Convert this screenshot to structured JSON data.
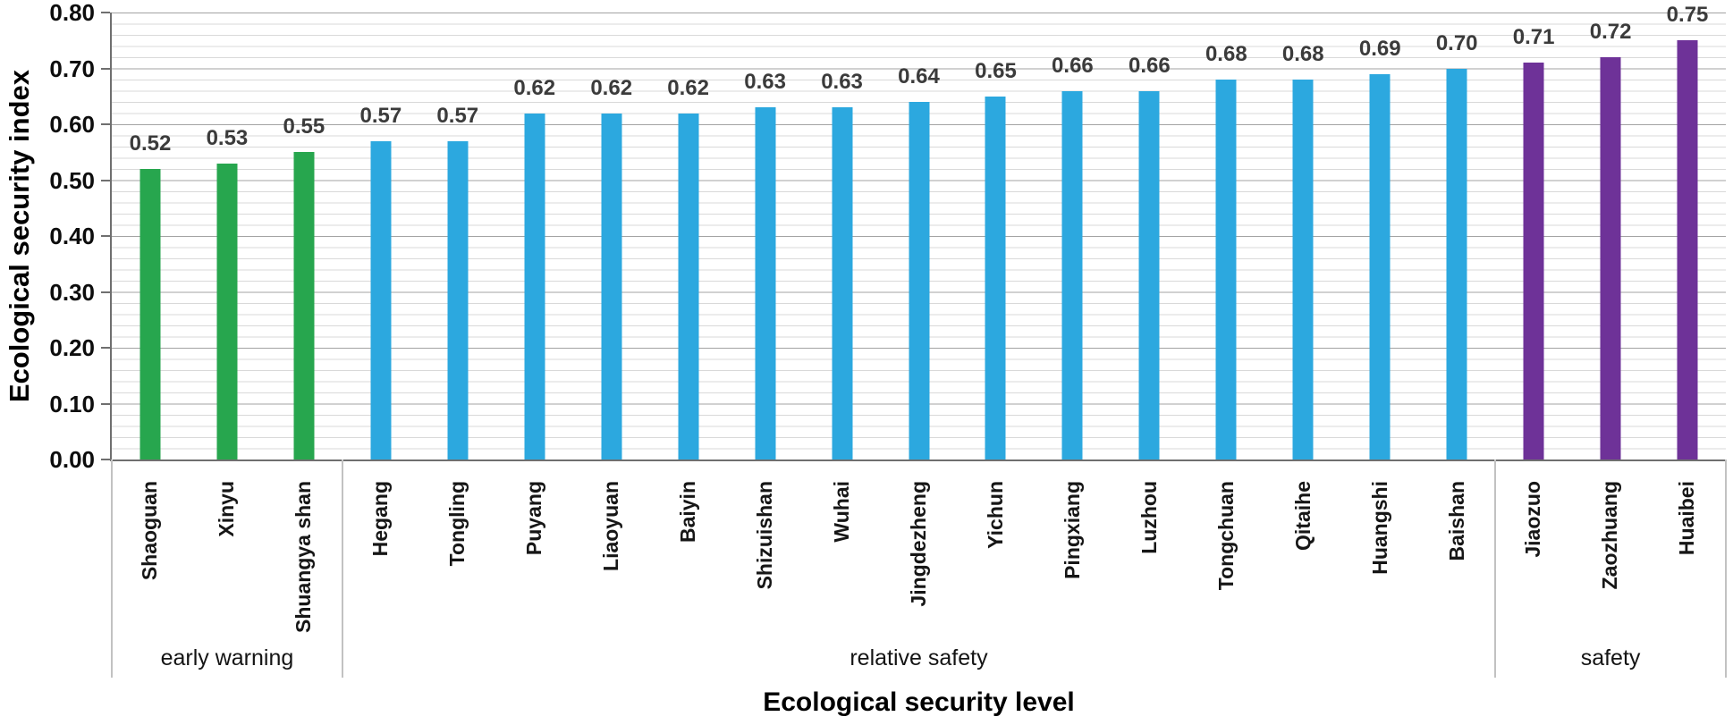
{
  "chart_data": {
    "type": "bar",
    "title": "",
    "xlabel": "Ecological security level",
    "ylabel": "Ecological security index",
    "ylim": [
      0.0,
      0.8
    ],
    "ytick_values": [
      0.8,
      0.7,
      0.6,
      0.5,
      0.4,
      0.3,
      0.2,
      0.1,
      0.0
    ],
    "ytick_labels": [
      "0.80",
      "0.70",
      "0.60",
      "0.50",
      "0.40",
      "0.30",
      "0.20",
      "0.10",
      "0.00"
    ],
    "minor_gridline_interval": 0.02,
    "major_gridline_interval": 0.1,
    "grid": "on",
    "legend_position": "none",
    "categories": [
      "Shaoguan",
      "Xinyu",
      "Shuangya shan",
      "Hegang",
      "Tongling",
      "Puyang",
      "Liaoyuan",
      "Baiyin",
      "Shizuishan",
      "Wuhai",
      "Jingdezheng",
      "Yichun",
      "Pingxiang",
      "Luzhou",
      "Tongchuan",
      "Qitaihe",
      "Huangshi",
      "Baishan",
      "Jiaozuo",
      "Zaozhuang",
      "Huaibei"
    ],
    "values": [
      0.52,
      0.53,
      0.55,
      0.57,
      0.57,
      0.62,
      0.62,
      0.62,
      0.63,
      0.63,
      0.64,
      0.65,
      0.66,
      0.66,
      0.68,
      0.68,
      0.69,
      0.7,
      0.71,
      0.72,
      0.75
    ],
    "value_labels": [
      "0.52",
      "0.53",
      "0.55",
      "0.57",
      "0.57",
      "0.62",
      "0.62",
      "0.62",
      "0.63",
      "0.63",
      "0.64",
      "0.65",
      "0.66",
      "0.66",
      "0.68",
      "0.68",
      "0.69",
      "0.70",
      "0.71",
      "0.72",
      "0.75"
    ],
    "groups": [
      {
        "label": "early warning",
        "count": 3,
        "bar_color": "#27a64e"
      },
      {
        "label": "relative safety",
        "count": 15,
        "bar_color": "#2ca8df"
      },
      {
        "label": "safety",
        "count": 3,
        "bar_color": "#6e3298"
      }
    ],
    "style": {
      "major_gridline_color": "#a3a3a3",
      "minor_gridline_color": "#d9d9d9",
      "axis_line_color": "#6f6f6f",
      "divider_color": "#c2c2c2",
      "value_label_color": "#3b3b3b",
      "background": "#ffffff"
    }
  }
}
